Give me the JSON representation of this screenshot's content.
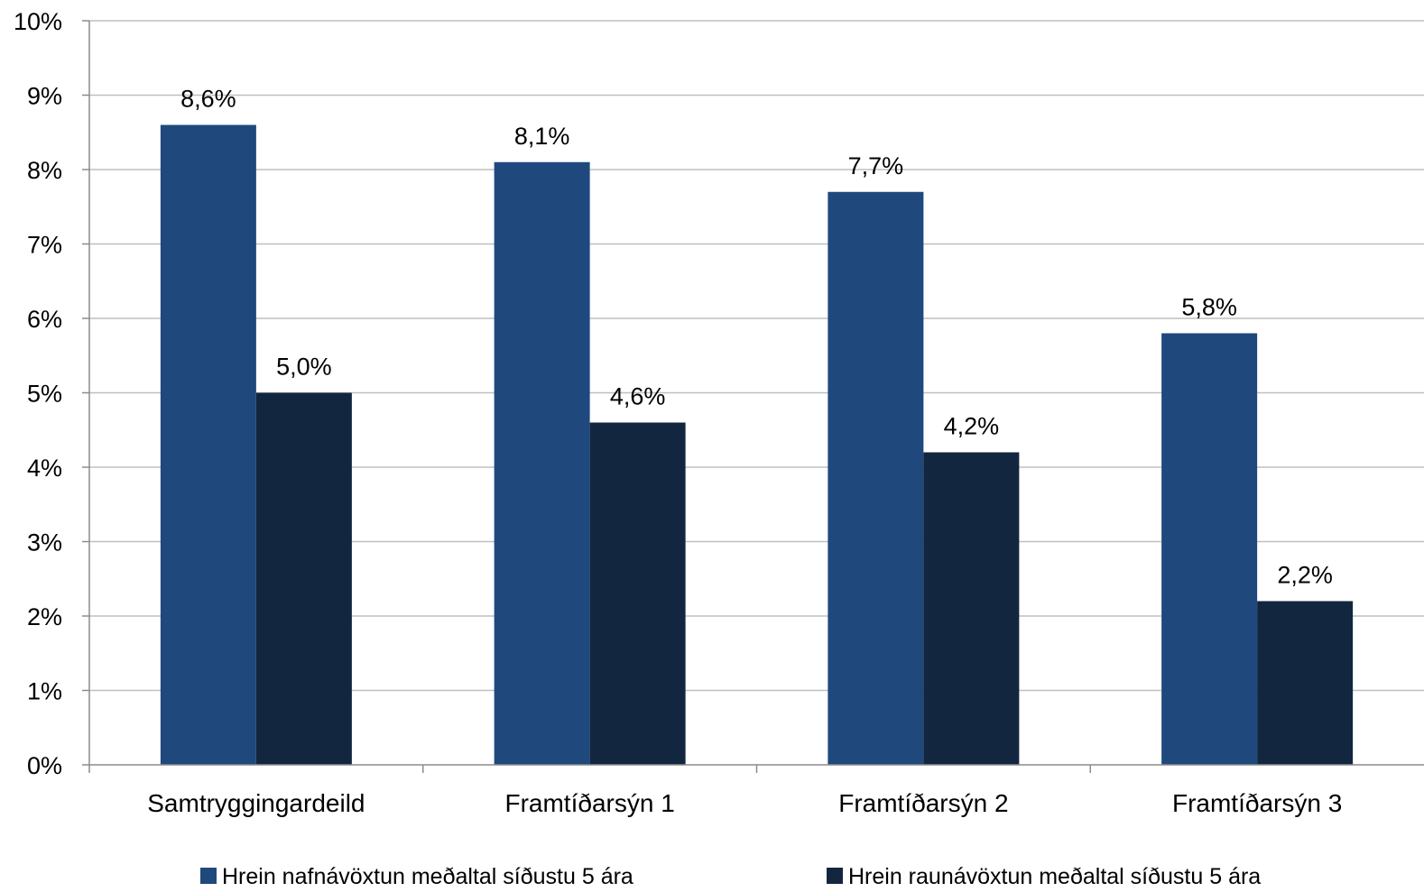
{
  "chart_data": {
    "type": "bar",
    "categories": [
      "Samtryggingardeild",
      "Framtíðarsýn 1",
      "Framtíðarsýn 2",
      "Framtíðarsýn 3"
    ],
    "series": [
      {
        "name": "Hrein nafnávöxtun meðaltal síðustu 5 ára",
        "color": "#1f497d",
        "values": [
          8.6,
          8.1,
          7.7,
          5.8
        ],
        "labels": [
          "8,6%",
          "8,1%",
          "7,7%",
          "5,8%"
        ]
      },
      {
        "name": "Hrein raunávöxtun meðaltal síðustu 5 ára",
        "color": "#132640",
        "values": [
          5.0,
          4.6,
          4.2,
          2.2
        ],
        "labels": [
          "5,0%",
          "4,6%",
          "4,2%",
          "2,2%"
        ]
      }
    ],
    "ylim": [
      0,
      10
    ],
    "yticks": [
      0,
      1,
      2,
      3,
      4,
      5,
      6,
      7,
      8,
      9,
      10
    ],
    "ytick_labels": [
      "0%",
      "1%",
      "2%",
      "3%",
      "4%",
      "5%",
      "6%",
      "7%",
      "8%",
      "9%",
      "10%"
    ],
    "grid": true,
    "legend_position": "bottom",
    "title": "",
    "xlabel": "",
    "ylabel": ""
  }
}
